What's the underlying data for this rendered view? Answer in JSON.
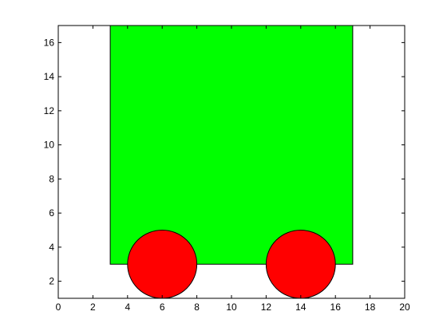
{
  "chart_data": {
    "type": "other",
    "xlim": [
      0,
      20
    ],
    "ylim": [
      1,
      17
    ],
    "x_ticks": [
      "0",
      "2",
      "4",
      "6",
      "8",
      "10",
      "12",
      "14",
      "16",
      "18",
      "20"
    ],
    "y_ticks": [
      "2",
      "4",
      "6",
      "8",
      "10",
      "12",
      "14",
      "16"
    ],
    "grid": false,
    "shapes": [
      {
        "kind": "rectangle",
        "name": "body",
        "x": [
          3,
          17
        ],
        "y": [
          3,
          17
        ],
        "fill": "#00ff00"
      },
      {
        "kind": "circle",
        "name": "left-wheel",
        "cx": 6,
        "cy": 3,
        "r": 2,
        "fill": "#ff0000"
      },
      {
        "kind": "circle",
        "name": "right-wheel",
        "cx": 14,
        "cy": 3,
        "r": 2,
        "fill": "#ff0000"
      }
    ]
  },
  "colors": {
    "background": "#ffffff",
    "axes": "#000000",
    "outline": "#000000"
  }
}
